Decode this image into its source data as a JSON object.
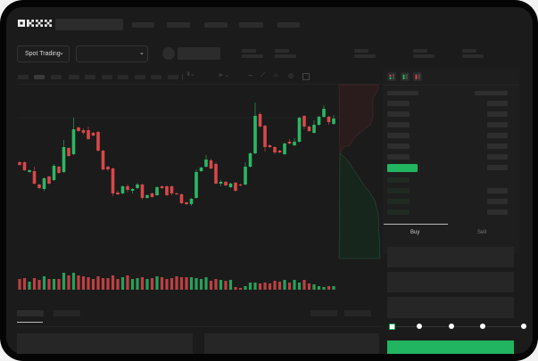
{
  "header": {
    "logo": "OKX"
  },
  "market_selector": {
    "label": "Spot Trading",
    "chevron": "chevron-down-icon"
  },
  "orderbook": {
    "view_icons": [
      "orderbook-both-icon",
      "orderbook-bids-icon",
      "orderbook-asks-icon"
    ]
  },
  "trade_panel": {
    "tabs": [
      "Buy",
      "Sell"
    ],
    "active_tab": "Buy",
    "slider_level_percent": 0
  },
  "colors": {
    "up": "#2ab764",
    "down": "#d9474a",
    "background": "#1b1b1b",
    "accent": "#20b561"
  },
  "chart_data": {
    "type": "candlestick",
    "fields": [
      "open",
      "close",
      "high",
      "low"
    ],
    "candles": [
      [
        118,
        115,
        119,
        114
      ],
      [
        118,
        109,
        119,
        108
      ],
      [
        107,
        109,
        110,
        106
      ],
      [
        108,
        94,
        113,
        93
      ],
      [
        93,
        89,
        94,
        88
      ],
      [
        88,
        100,
        101,
        86
      ],
      [
        102,
        94,
        103,
        93
      ],
      [
        98,
        114,
        116,
        97
      ],
      [
        113,
        106,
        114,
        105
      ],
      [
        107,
        135,
        143,
        106
      ],
      [
        134,
        125,
        135,
        124
      ],
      [
        127,
        155,
        168,
        126
      ],
      [
        157,
        153,
        158,
        152
      ],
      [
        154,
        151,
        156,
        149
      ],
      [
        154,
        144,
        158,
        143
      ],
      [
        151,
        148,
        152,
        147
      ],
      [
        152,
        131,
        153,
        130
      ],
      [
        131,
        110,
        132,
        109
      ],
      [
        113,
        110,
        114,
        108
      ],
      [
        111,
        83,
        112,
        80
      ],
      [
        84,
        82,
        86,
        81
      ],
      [
        83,
        91,
        92,
        82
      ],
      [
        91,
        87,
        93,
        84
      ],
      [
        86,
        88,
        89,
        83
      ],
      [
        89,
        93,
        95,
        88
      ],
      [
        93,
        78,
        94,
        76
      ],
      [
        78,
        81,
        82,
        77
      ],
      [
        83,
        79,
        84,
        78
      ],
      [
        81,
        90,
        91,
        80
      ],
      [
        91,
        89,
        92,
        88
      ],
      [
        91,
        81,
        92,
        80
      ],
      [
        91,
        83,
        92,
        81
      ],
      [
        83,
        82,
        84,
        81
      ],
      [
        82,
        72,
        83,
        71
      ],
      [
        73,
        71,
        74,
        70
      ],
      [
        71,
        77,
        78,
        69
      ],
      [
        78,
        107,
        110,
        77
      ],
      [
        108,
        112,
        113,
        107
      ],
      [
        113,
        121,
        126,
        112
      ],
      [
        120,
        111,
        122,
        110
      ],
      [
        116,
        94,
        118,
        93
      ],
      [
        94,
        96,
        98,
        91
      ],
      [
        96,
        92,
        97,
        91
      ],
      [
        90,
        94,
        95,
        89
      ],
      [
        95,
        86,
        96,
        85
      ],
      [
        93,
        92,
        94,
        91
      ],
      [
        93,
        113,
        118,
        92
      ],
      [
        113,
        128,
        129,
        112
      ],
      [
        128,
        170,
        185,
        127
      ],
      [
        172,
        158,
        174,
        157
      ],
      [
        159,
        135,
        160,
        130
      ],
      [
        137,
        135,
        138,
        134
      ],
      [
        135,
        129,
        136,
        127
      ],
      [
        131,
        129,
        132,
        128
      ],
      [
        127,
        139,
        140,
        126
      ],
      [
        141,
        139,
        144,
        138
      ],
      [
        137,
        141,
        145,
        136
      ],
      [
        141,
        168,
        169,
        140
      ],
      [
        170,
        158,
        171,
        155
      ],
      [
        158,
        153,
        159,
        152
      ],
      [
        151,
        160,
        165,
        150
      ],
      [
        160,
        169,
        170,
        159
      ],
      [
        169,
        178,
        182,
        168
      ],
      [
        169,
        163,
        170,
        160
      ],
      [
        161,
        167,
        171,
        160
      ]
    ],
    "volume": [
      12,
      13,
      9,
      13,
      11,
      15,
      12,
      12,
      12,
      19,
      16,
      19,
      16,
      15,
      14,
      12,
      15,
      13,
      13,
      16,
      12,
      14,
      16,
      12,
      13,
      14,
      12,
      13,
      15,
      14,
      12,
      13,
      15,
      14,
      14,
      14,
      13,
      12,
      14,
      10,
      12,
      11,
      10,
      11,
      3,
      2,
      4,
      8,
      8,
      7,
      8,
      7,
      10,
      9,
      11,
      8,
      11,
      8,
      11,
      7,
      6,
      4,
      3,
      4,
      4
    ]
  }
}
